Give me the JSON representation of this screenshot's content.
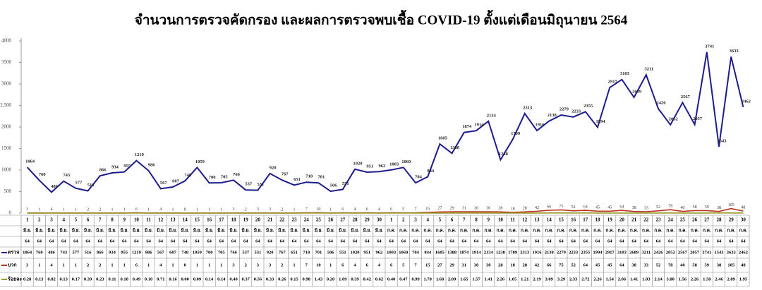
{
  "chart_data": {
    "type": "line",
    "title": "จำนวนการตรวจคัดกรอง และผลการตรวจพบเชื้อ COVID-19 ตั้งแต่เดือนมิถุนายน 2564",
    "categories": [
      "1",
      "2",
      "3",
      "4",
      "5",
      "6",
      "7",
      "8",
      "9",
      "10",
      "11",
      "12",
      "13",
      "14",
      "15",
      "16",
      "17",
      "18",
      "19",
      "20",
      "21",
      "22",
      "23",
      "24",
      "25",
      "26",
      "27",
      "28",
      "29",
      "30",
      "1",
      "2",
      "3",
      "4",
      "5",
      "6",
      "7",
      "8",
      "9",
      "10",
      "11",
      "12",
      "13",
      "14",
      "15",
      "16",
      "17",
      "18",
      "19",
      "20",
      "21",
      "22",
      "23",
      "24",
      "25",
      "26",
      "27",
      "28",
      "29",
      "30"
    ],
    "category_months": [
      "มิ.ย.",
      "มิ.ย.",
      "มิ.ย.",
      "มิ.ย.",
      "มิ.ย.",
      "มิ.ย.",
      "มิ.ย.",
      "มิ.ย.",
      "มิ.ย.",
      "มิ.ย.",
      "มิ.ย.",
      "มิ.ย.",
      "มิ.ย.",
      "มิ.ย.",
      "มิ.ย.",
      "มิ.ย.",
      "มิ.ย.",
      "มิ.ย.",
      "มิ.ย.",
      "มิ.ย.",
      "มิ.ย.",
      "มิ.ย.",
      "มิ.ย.",
      "มิ.ย.",
      "มิ.ย.",
      "มิ.ย.",
      "มิ.ย.",
      "มิ.ย.",
      "มิ.ย.",
      "มิ.ย.",
      "ก.ค.",
      "ก.ค.",
      "ก.ค.",
      "ก.ค.",
      "ก.ค.",
      "ก.ค.",
      "ก.ค.",
      "ก.ค.",
      "ก.ค.",
      "ก.ค.",
      "ก.ค.",
      "ก.ค.",
      "ก.ค.",
      "ก.ค.",
      "ก.ค.",
      "ก.ค.",
      "ก.ค.",
      "ก.ค.",
      "ก.ค.",
      "ก.ค.",
      "ก.ค.",
      "ก.ค.",
      "ก.ค.",
      "ก.ค.",
      "ก.ค.",
      "ก.ค.",
      "ก.ค.",
      "ก.ค.",
      "ก.ค.",
      "ก.ค."
    ],
    "category_years": [
      "64",
      "64",
      "64",
      "64",
      "64",
      "64",
      "64",
      "64",
      "64",
      "64",
      "64",
      "64",
      "64",
      "64",
      "64",
      "64",
      "64",
      "64",
      "64",
      "64",
      "64",
      "64",
      "64",
      "64",
      "64",
      "64",
      "64",
      "64",
      "64",
      "64",
      "64",
      "64",
      "64",
      "64",
      "64",
      "64",
      "64",
      "64",
      "64",
      "64",
      "64",
      "64",
      "64",
      "64",
      "64",
      "64",
      "64",
      "64",
      "64",
      "64",
      "64",
      "64",
      "64",
      "64",
      "64",
      "64",
      "64",
      "64",
      "64",
      "64"
    ],
    "ylim": [
      0,
      4000
    ],
    "yticks": [
      0,
      500,
      1000,
      1500,
      2000,
      {
        "value": 2500,
        "label": "2,500"
      },
      3000,
      3500,
      4000
    ],
    "grid": false,
    "series": [
      {
        "name": "ตรวจ",
        "color": "#1c1c8c",
        "values": [
          1064,
          760,
          486,
          743,
          577,
          516,
          866,
          934,
          955,
          1219,
          986,
          567,
          607,
          748,
          1059,
          700,
          705,
          766,
          537,
          531,
          920,
          767,
          651,
          718,
          701,
          506,
          551,
          1020,
          951,
          962,
          1003,
          1060,
          704,
          844,
          1605,
          1388,
          1874,
          1914,
          2134,
          1238,
          1709,
          2313,
          1916,
          2138,
          2279,
          2233,
          2355,
          1994,
          2917,
          3103,
          2689,
          3211,
          2426,
          2052,
          2567,
          2057,
          3741,
          1543,
          3633,
          2462
        ]
      },
      {
        "name": "บวก",
        "color": "#b8321e",
        "values": [
          3,
          1,
          4,
          1,
          1,
          2,
          2,
          1,
          1,
          6,
          1,
          4,
          1,
          0,
          1,
          1,
          1,
          3,
          2,
          3,
          3,
          2,
          1,
          7,
          10,
          1,
          6,
          4,
          6,
          4,
          6,
          5,
          7,
          15,
          27,
          29,
          31,
          30,
          30,
          28,
          18,
          28,
          42,
          66,
          75,
          52,
          64,
          45,
          45,
          64,
          38,
          33,
          52,
          78,
          40,
          58,
          59,
          38,
          105,
          48
        ]
      },
      {
        "name": "ร้อยละ",
        "color": "#9a9a2a",
        "values": [
          0.28,
          0.13,
          0.82,
          0.13,
          0.17,
          0.39,
          0.23,
          0.11,
          0.1,
          0.49,
          0.1,
          0.71,
          0.16,
          0,
          0.09,
          0.14,
          0.14,
          0.4,
          0.37,
          0.56,
          0.33,
          0.26,
          0.15,
          0.98,
          1.43,
          0.2,
          1.09,
          0.39,
          0.42,
          0.62,
          0.4,
          0.47,
          0.99,
          1.78,
          1.68,
          2.09,
          1.65,
          1.57,
          1.41,
          2.26,
          1.05,
          1.21,
          2.19,
          3.09,
          3.29,
          2.33,
          2.72,
          2.26,
          1.54,
          2.06,
          1.41,
          1.03,
          2.14,
          3.8,
          1.56,
          2.26,
          1.58,
          2.46,
          2.89,
          1.95
        ],
        "value_labels": [
          "0.28",
          "0.13",
          "0.82",
          "0.13",
          "0.17",
          "0.39",
          "0.23",
          "0.11",
          "0.10",
          "0.49",
          "0.10",
          "0.71",
          "0.16",
          "0.00",
          "0.09",
          "0.14",
          "0.14",
          "0.40",
          "0.37",
          "0.56",
          "0.33",
          "0.26",
          "0.15",
          "0.98",
          "1.43",
          "0.20",
          "1.09",
          "0.39",
          "0.42",
          "0.62",
          "0.40",
          "0.47",
          "0.99",
          "1.78",
          "1.68",
          "2.09",
          "1.65",
          "1.57",
          "1.41",
          "2.26",
          "1.05",
          "1.21",
          "2.19",
          "3.09",
          "3.29",
          "2.33",
          "2.72",
          "2.26",
          "1.54",
          "2.06",
          "1.41",
          "1.03",
          "2.14",
          "3.80",
          "1.56",
          "2.26",
          "1.58",
          "2.46",
          "2.89",
          "1.95"
        ]
      }
    ]
  }
}
